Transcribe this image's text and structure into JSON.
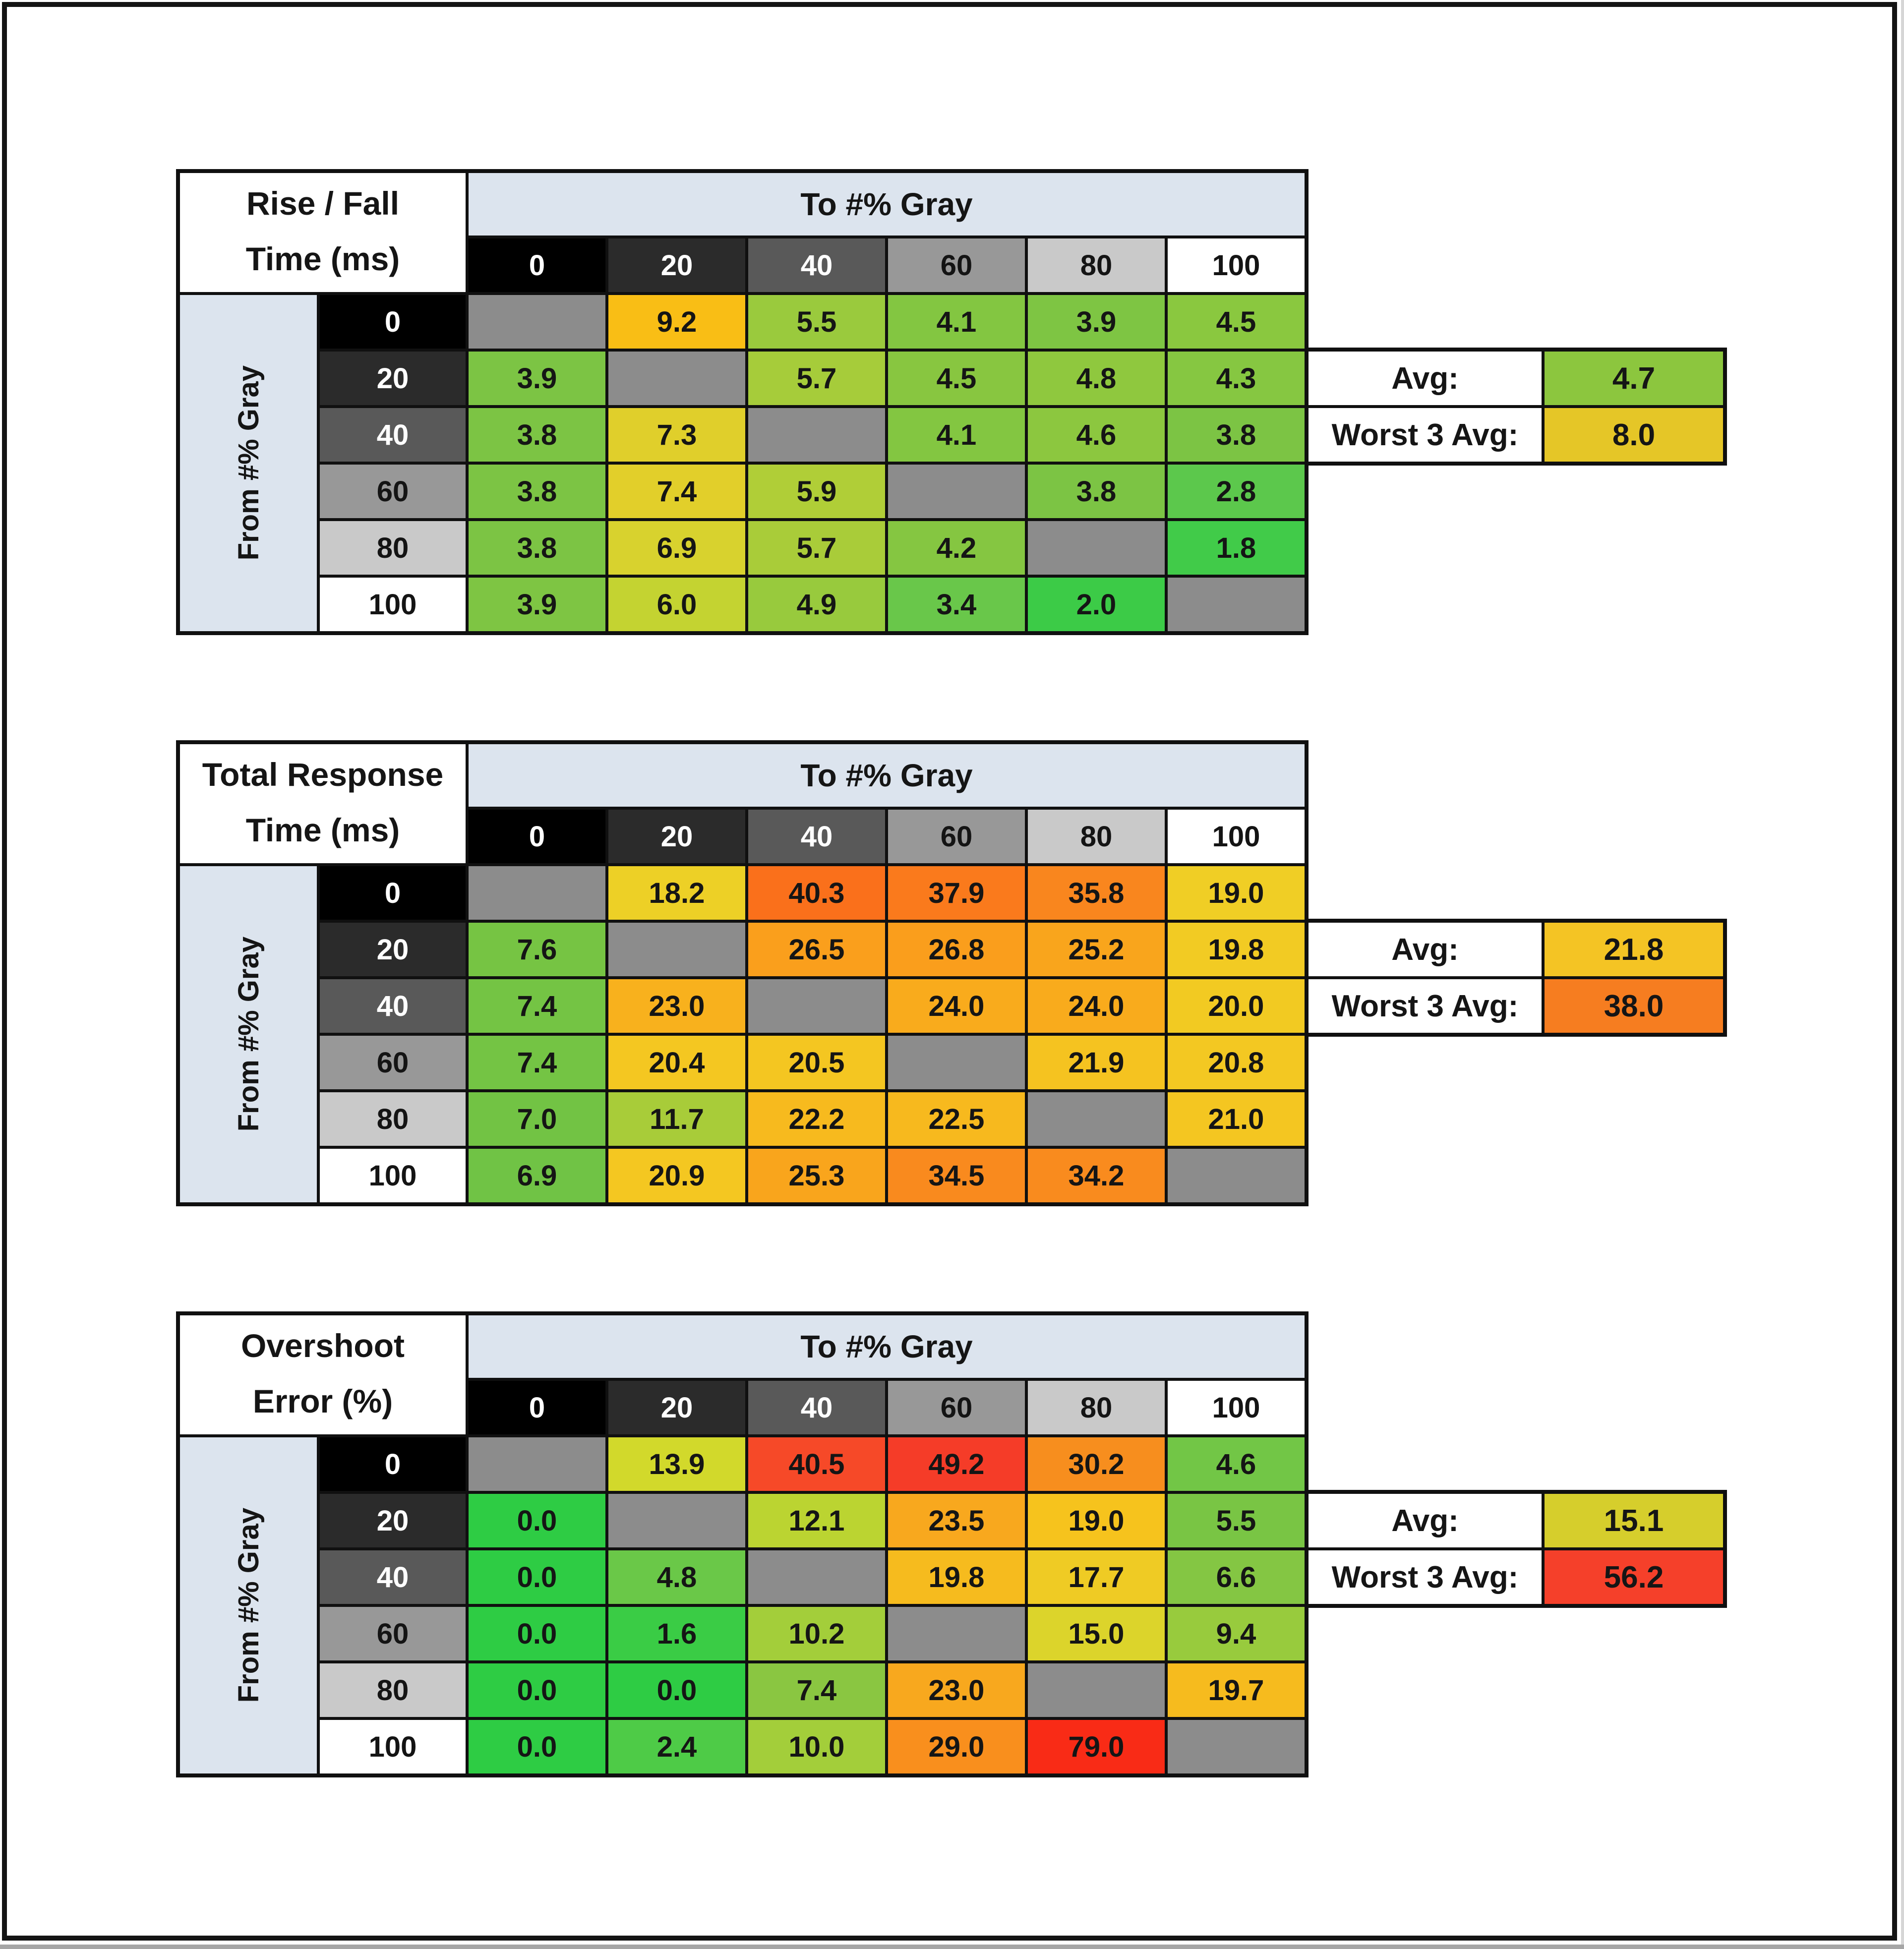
{
  "frame": {
    "page_background": "#ffffff",
    "border_color": "#141414",
    "bottom_strip_color": "#a6a6a6"
  },
  "shared": {
    "col_axis_label": "To #% Gray",
    "row_axis_label": "From #% Gray",
    "avg_label": "Avg:",
    "worst_label": "Worst 3 Avg:",
    "axis_band_color": "#dce4ee",
    "diagonal_color": "#8c8c8c",
    "gray_headers": [
      {
        "label": "0",
        "bg": "#000000",
        "fg": "#ffffff"
      },
      {
        "label": "20",
        "bg": "#2b2b2b",
        "fg": "#ffffff"
      },
      {
        "label": "40",
        "bg": "#595959",
        "fg": "#ffffff"
      },
      {
        "label": "60",
        "bg": "#989898",
        "fg": "#141414"
      },
      {
        "label": "80",
        "bg": "#c9c9c9",
        "fg": "#141414"
      },
      {
        "label": "100",
        "bg": "#ffffff",
        "fg": "#141414"
      }
    ]
  },
  "chart_data": [
    {
      "type": "heatmap",
      "id": "rise-fall-time",
      "title": [
        "Rise / Fall",
        "Time (ms)"
      ],
      "x_categories": [
        0,
        20,
        40,
        60,
        80,
        100
      ],
      "y_categories": [
        0,
        20,
        40,
        60,
        80,
        100
      ],
      "values": [
        [
          null,
          9.2,
          5.5,
          4.1,
          3.9,
          4.5
        ],
        [
          3.9,
          null,
          5.7,
          4.5,
          4.8,
          4.3
        ],
        [
          3.8,
          7.3,
          null,
          4.1,
          4.6,
          3.8
        ],
        [
          3.8,
          7.4,
          5.9,
          null,
          3.8,
          2.8
        ],
        [
          3.8,
          6.9,
          5.7,
          4.2,
          null,
          1.8
        ],
        [
          3.9,
          6.0,
          4.9,
          3.4,
          2.0,
          null
        ]
      ],
      "cell_colors": [
        [
          null,
          "#f9be15",
          "#9aca3d",
          "#83c641",
          "#7ec543",
          "#8ac83f"
        ],
        [
          "#7cc444",
          null,
          "#a6cc3a",
          "#88c640",
          "#8fc83e",
          "#86c741"
        ],
        [
          "#7cc444",
          "#e0cf2b",
          null,
          "#83c641",
          "#8cc73f",
          "#7cc444"
        ],
        [
          "#7cc444",
          "#e2cf2a",
          "#b0ce37",
          null,
          "#7cc444",
          "#5cc84c"
        ],
        [
          "#7cc444",
          "#d8d22e",
          "#a9cc39",
          "#85c641",
          null,
          "#41cb49"
        ],
        [
          "#7ec543",
          "#c4d331",
          "#98ca3d",
          "#69c74a",
          "#3ccb47",
          null
        ]
      ],
      "avg": 4.7,
      "avg_color": "#8cc63e",
      "worst3_avg": 8.0,
      "worst3_color": "#e5c627"
    },
    {
      "type": "heatmap",
      "id": "total-response-time",
      "title": [
        "Total Response",
        "Time (ms)"
      ],
      "x_categories": [
        0,
        20,
        40,
        60,
        80,
        100
      ],
      "y_categories": [
        0,
        20,
        40,
        60,
        80,
        100
      ],
      "values": [
        [
          null,
          18.2,
          40.3,
          37.9,
          35.8,
          19.0
        ],
        [
          7.6,
          null,
          26.5,
          26.8,
          25.2,
          19.8
        ],
        [
          7.4,
          23.0,
          null,
          24.0,
          24.0,
          20.0
        ],
        [
          7.4,
          20.4,
          20.5,
          null,
          21.9,
          20.8
        ],
        [
          7.0,
          11.7,
          22.2,
          22.5,
          null,
          21.0
        ],
        [
          6.9,
          20.9,
          25.3,
          34.5,
          34.2,
          null
        ]
      ],
      "cell_colors": [
        [
          null,
          "#edd026",
          "#fa701b",
          "#fa7a1c",
          "#f9861e",
          "#f0ce25"
        ],
        [
          "#76c443",
          null,
          "#fa9f1c",
          "#fa9e1c",
          "#f9a51c",
          "#f2cb23"
        ],
        [
          "#74c444",
          "#f8b11d",
          null,
          "#f9ab1c",
          "#f9ab1c",
          "#f2ca22"
        ],
        [
          "#74c444",
          "#f4c721",
          "#f4c621",
          null,
          "#f5c320",
          "#f3c822"
        ],
        [
          "#72c344",
          "#a8cc39",
          "#f7ba1e",
          "#f7b91e",
          null,
          "#f4c621"
        ],
        [
          "#70c345",
          "#f4c721",
          "#f9a51c",
          "#f98a1e",
          "#f98b1e",
          null
        ]
      ],
      "avg": 21.8,
      "avg_color": "#f4c424",
      "worst3_avg": 38.0,
      "worst3_color": "#f67d20"
    },
    {
      "type": "heatmap",
      "id": "overshoot-error",
      "title": [
        "Overshoot",
        "Error (%)"
      ],
      "x_categories": [
        0,
        20,
        40,
        60,
        80,
        100
      ],
      "y_categories": [
        0,
        20,
        40,
        60,
        80,
        100
      ],
      "values": [
        [
          null,
          13.9,
          40.5,
          49.2,
          30.2,
          4.6
        ],
        [
          0.0,
          null,
          12.1,
          23.5,
          19.0,
          5.5
        ],
        [
          0.0,
          4.8,
          null,
          19.8,
          17.7,
          6.6
        ],
        [
          0.0,
          1.6,
          10.2,
          null,
          15.0,
          9.4
        ],
        [
          0.0,
          0.0,
          7.4,
          23.0,
          null,
          19.7
        ],
        [
          0.0,
          2.4,
          10.0,
          29.0,
          79.0,
          null
        ]
      ],
      "cell_colors": [
        [
          null,
          "#d2d92b",
          "#f64928",
          "#f53c28",
          "#f78e1e",
          "#72c646"
        ],
        [
          "#2ecc44",
          null,
          "#bbd431",
          "#f8a81e",
          "#f6c31d",
          "#79c544"
        ],
        [
          "#2ecc44",
          "#6ac848",
          null,
          "#f6bb1e",
          "#efcb24",
          "#84c643"
        ],
        [
          "#2ecc44",
          "#3acc45",
          "#a3ce3a",
          null,
          "#dcd42b",
          "#98cb3d"
        ],
        [
          "#2ecc44",
          "#2ecc44",
          "#8ac641",
          "#f8a81e",
          null,
          "#f6bb1e"
        ],
        [
          "#2ecc44",
          "#4ecb47",
          "#a3ce3a",
          "#f98f1d",
          "#f92b16",
          null
        ]
      ],
      "avg": 15.1,
      "avg_color": "#d6ce2c",
      "worst3_avg": 56.2,
      "worst3_color": "#f5402a"
    }
  ]
}
